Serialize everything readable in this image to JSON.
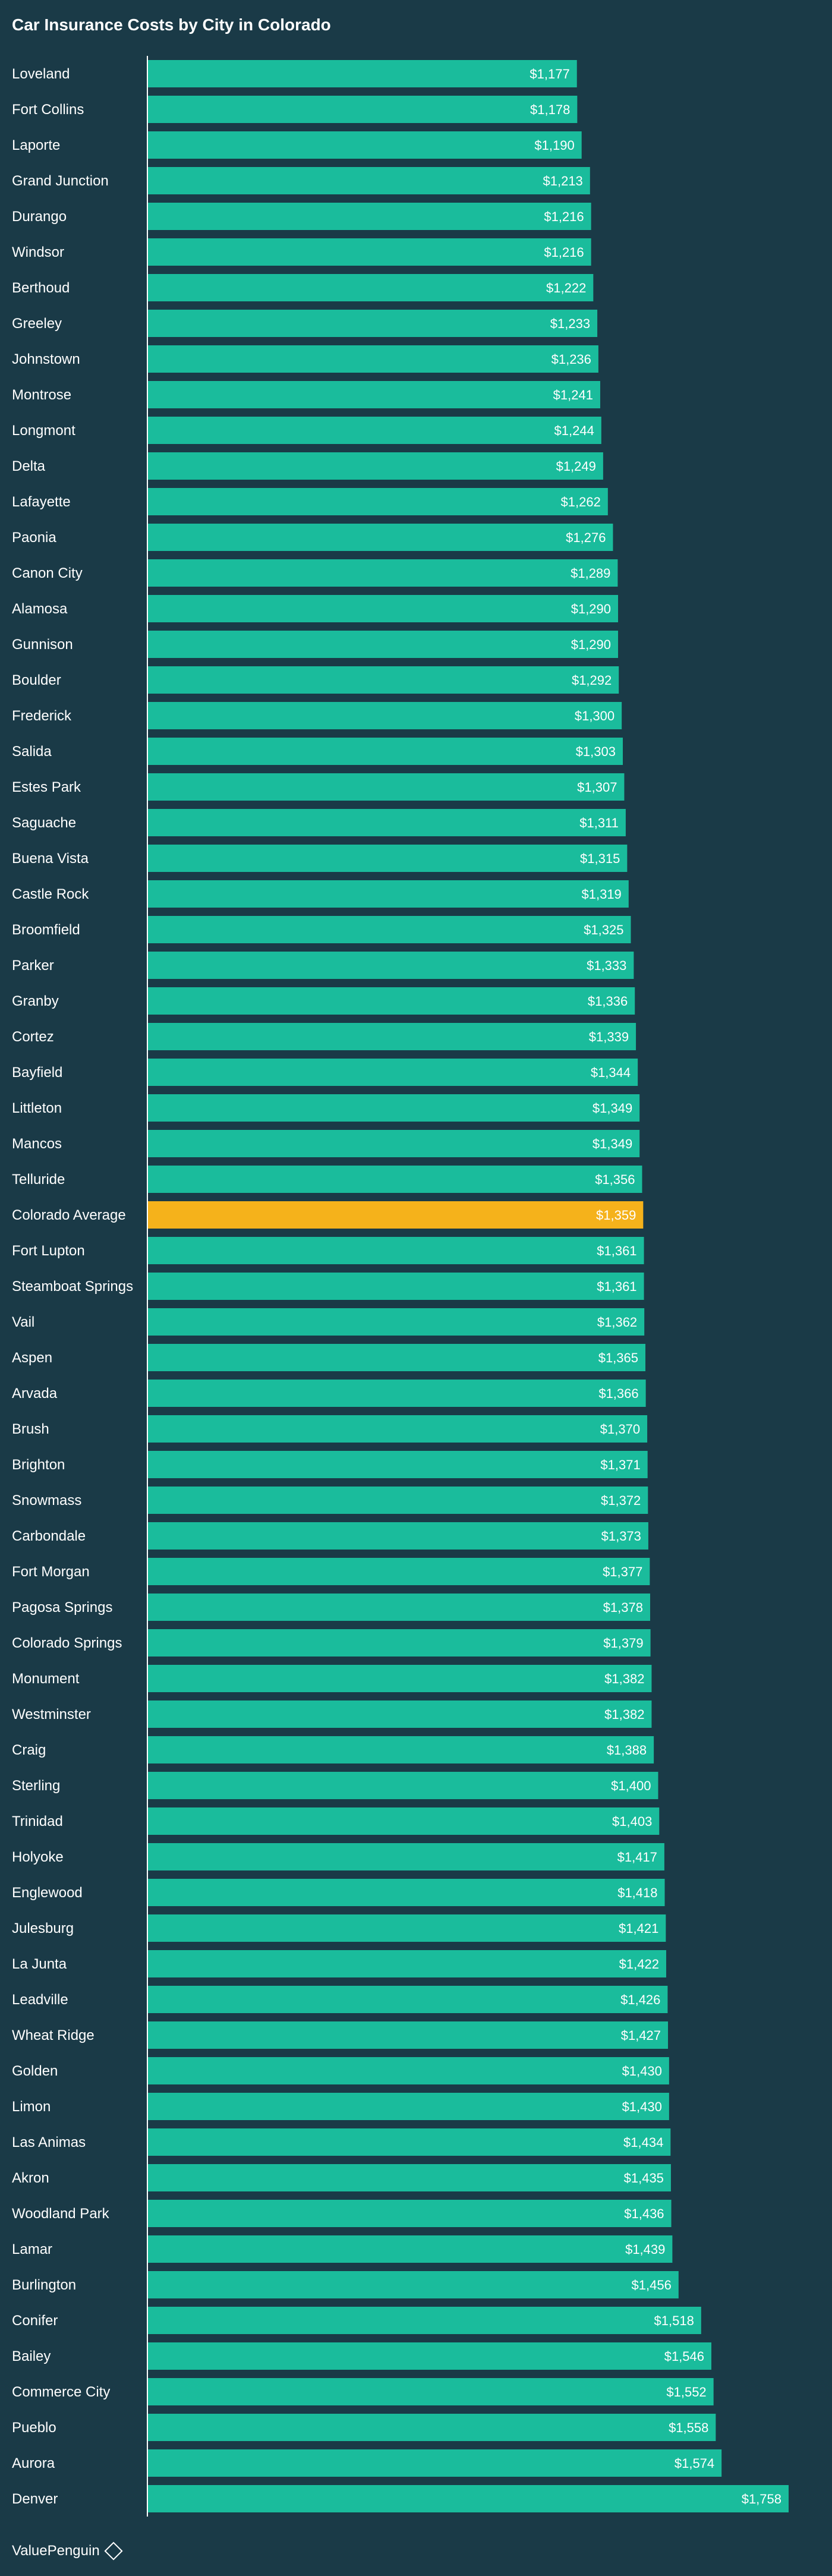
{
  "title": "Car Insurance Costs by City in Colorado",
  "brand": "ValuePenguin",
  "colors": {
    "background": "#1a3a47",
    "bar": "#1abc9c",
    "highlight": "#f5b21b",
    "axis": "#ffffff",
    "text": "#ffffff"
  },
  "chart_data": {
    "type": "bar",
    "orientation": "horizontal",
    "title": "Car Insurance Costs by City in Colorado",
    "xlabel": "",
    "ylabel": "",
    "grid": false,
    "xlim": [
      0,
      1800
    ],
    "highlight_category": "Colorado Average",
    "categories": [
      "Loveland",
      "Fort Collins",
      "Laporte",
      "Grand Junction",
      "Durango",
      "Windsor",
      "Berthoud",
      "Greeley",
      "Johnstown",
      "Montrose",
      "Longmont",
      "Delta",
      "Lafayette",
      "Paonia",
      "Canon City",
      "Alamosa",
      "Gunnison",
      "Boulder",
      "Frederick",
      "Salida",
      "Estes Park",
      "Saguache",
      "Buena Vista",
      "Castle Rock",
      "Broomfield",
      "Parker",
      "Granby",
      "Cortez",
      "Bayfield",
      "Littleton",
      "Mancos",
      "Telluride",
      "Colorado Average",
      "Fort Lupton",
      "Steamboat Springs",
      "Vail",
      "Aspen",
      "Arvada",
      "Brush",
      "Brighton",
      "Snowmass",
      "Carbondale",
      "Fort Morgan",
      "Pagosa Springs",
      "Colorado Springs",
      "Monument",
      "Westminster",
      "Craig",
      "Sterling",
      "Trinidad",
      "Holyoke",
      "Englewood",
      "Julesburg",
      "La Junta",
      "Leadville",
      "Wheat Ridge",
      "Golden",
      "Limon",
      "Las Animas",
      "Akron",
      "Woodland Park",
      "Lamar",
      "Burlington",
      "Conifer",
      "Bailey",
      "Commerce City",
      "Pueblo",
      "Aurora",
      "Denver"
    ],
    "values": [
      1177,
      1178,
      1190,
      1213,
      1216,
      1216,
      1222,
      1233,
      1236,
      1241,
      1244,
      1249,
      1262,
      1276,
      1289,
      1290,
      1290,
      1292,
      1300,
      1303,
      1307,
      1311,
      1315,
      1319,
      1325,
      1333,
      1336,
      1339,
      1344,
      1349,
      1349,
      1356,
      1359,
      1361,
      1361,
      1362,
      1365,
      1366,
      1370,
      1371,
      1372,
      1373,
      1377,
      1378,
      1379,
      1382,
      1382,
      1388,
      1400,
      1403,
      1417,
      1418,
      1421,
      1422,
      1426,
      1427,
      1430,
      1430,
      1434,
      1435,
      1436,
      1439,
      1456,
      1518,
      1546,
      1552,
      1558,
      1574,
      1758
    ],
    "value_labels": [
      "$1,177",
      "$1,178",
      "$1,190",
      "$1,213",
      "$1,216",
      "$1,216",
      "$1,222",
      "$1,233",
      "$1,236",
      "$1,241",
      "$1,244",
      "$1,249",
      "$1,262",
      "$1,276",
      "$1,289",
      "$1,290",
      "$1,290",
      "$1,292",
      "$1,300",
      "$1,303",
      "$1,307",
      "$1,311",
      "$1,315",
      "$1,319",
      "$1,325",
      "$1,333",
      "$1,336",
      "$1,339",
      "$1,344",
      "$1,349",
      "$1,349",
      "$1,356",
      "$1,359",
      "$1,361",
      "$1,361",
      "$1,362",
      "$1,365",
      "$1,366",
      "$1,370",
      "$1,371",
      "$1,372",
      "$1,373",
      "$1,377",
      "$1,378",
      "$1,379",
      "$1,382",
      "$1,382",
      "$1,388",
      "$1,400",
      "$1,403",
      "$1,417",
      "$1,418",
      "$1,421",
      "$1,422",
      "$1,426",
      "$1,427",
      "$1,430",
      "$1,430",
      "$1,434",
      "$1,435",
      "$1,436",
      "$1,439",
      "$1,456",
      "$1,518",
      "$1,546",
      "$1,552",
      "$1,558",
      "$1,574",
      "$1,758"
    ]
  }
}
